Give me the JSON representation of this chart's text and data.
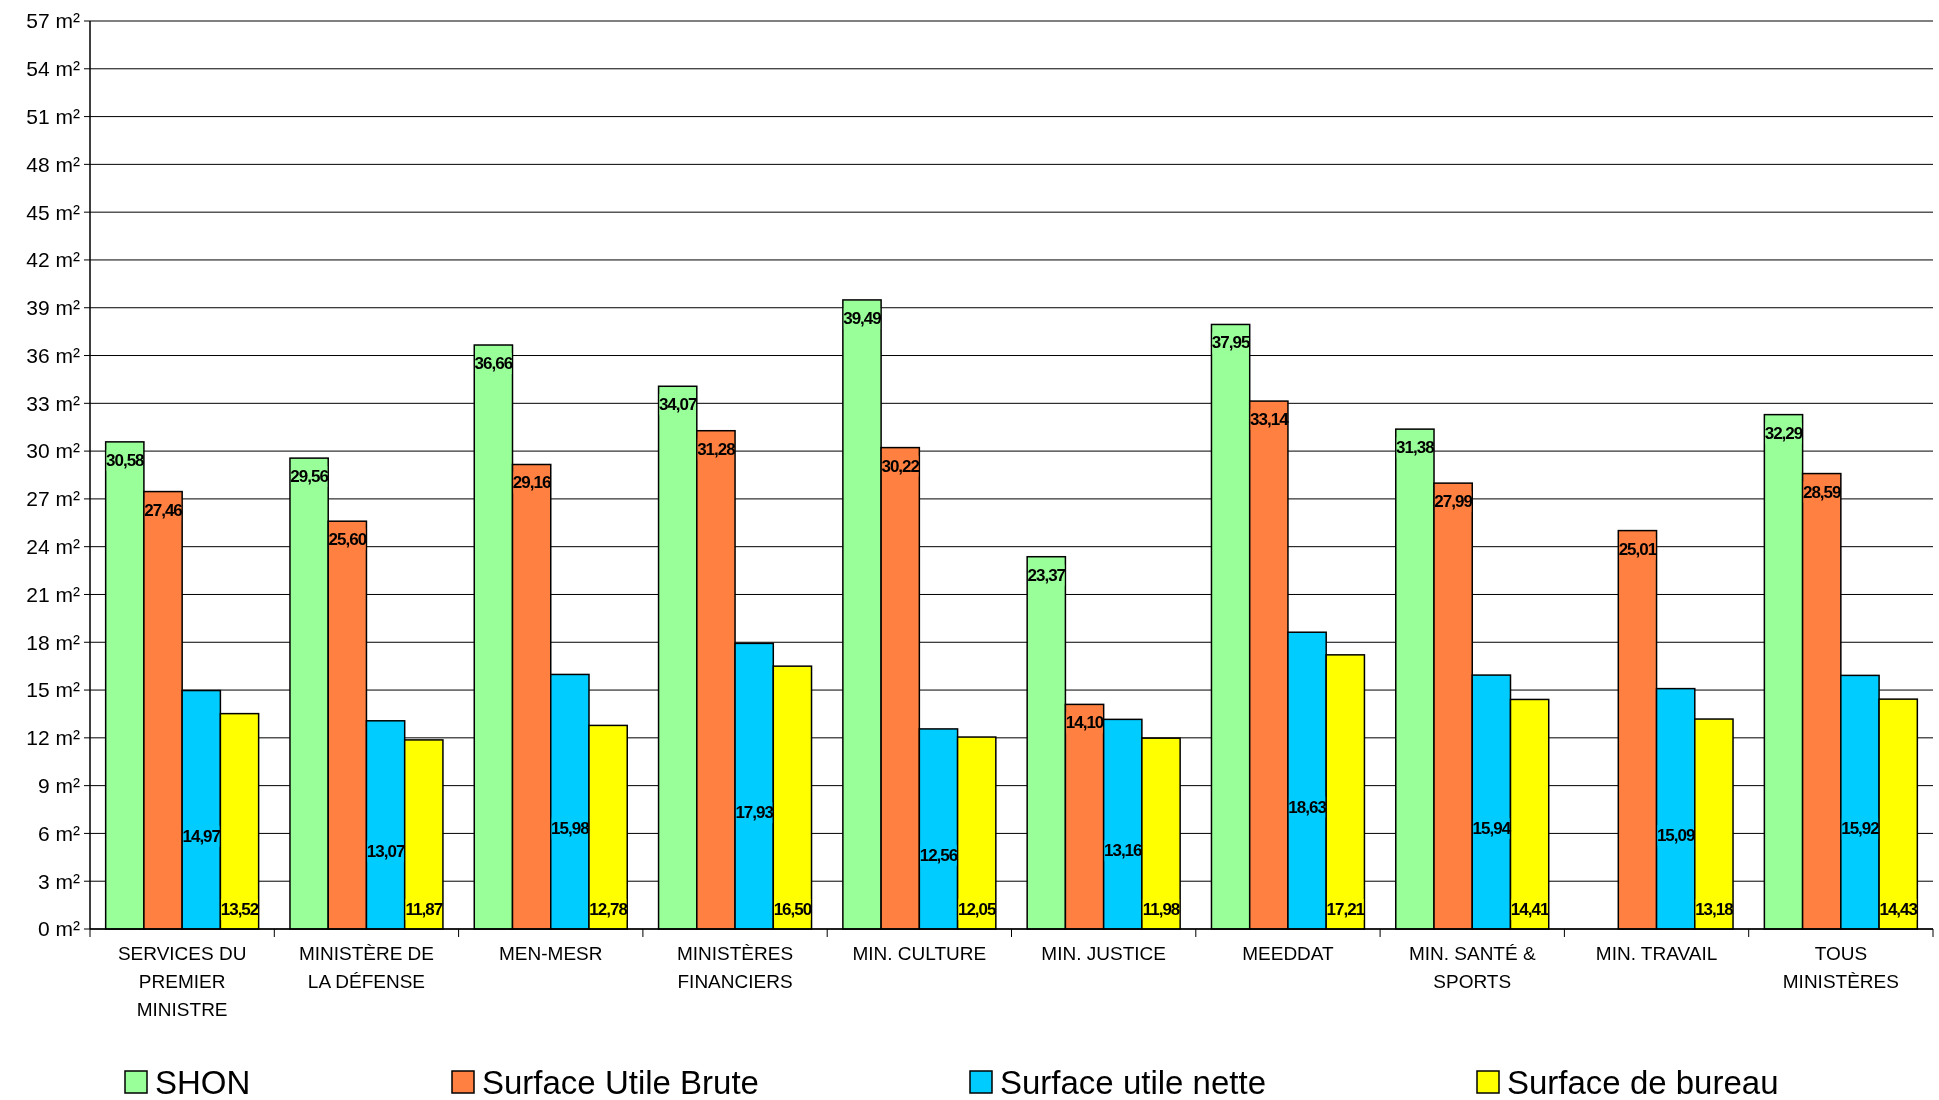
{
  "chart_data": {
    "type": "bar",
    "categories": [
      "SERVICES DU PREMIER MINISTRE",
      "MINISTÈRE DE LA DÉFENSE",
      "MEN-MESR",
      "MINISTÈRES FINANCIERS",
      "MIN. CULTURE",
      "MIN. JUSTICE",
      "MEEDDAT",
      "MIN. SANTÉ & SPORTS",
      "MIN. TRAVAIL",
      "TOUS MINISTÈRES"
    ],
    "series": [
      {
        "name": "SHON",
        "color": "#99ff99",
        "values": [
          30.58,
          29.56,
          36.66,
          34.07,
          39.49,
          23.37,
          37.95,
          31.38,
          null,
          32.29
        ],
        "value_labels": [
          "30,58",
          "29,56",
          "36,66",
          "34,07",
          "39,49",
          "23,37",
          "37,95",
          "31,38",
          null,
          "32,29"
        ]
      },
      {
        "name": "Surface Utile Brute",
        "color": "#ff8040",
        "values": [
          27.46,
          25.6,
          29.16,
          31.28,
          30.22,
          14.1,
          33.14,
          27.99,
          25.01,
          28.59
        ],
        "value_labels": [
          "27,46",
          "25,60",
          "29,16",
          "31,28",
          "30,22",
          "14,10",
          "33,14",
          "27,99",
          "25,01",
          "28,59"
        ]
      },
      {
        "name": "Surface utile nette",
        "color": "#00ccff",
        "values": [
          14.97,
          13.07,
          15.98,
          17.93,
          12.56,
          13.16,
          18.63,
          15.94,
          15.09,
          15.92
        ],
        "value_labels": [
          "14,97",
          "13,07",
          "15,98",
          "17,93",
          "12,56",
          "13,16",
          "18,63",
          "15,94",
          "15,09",
          "15,92"
        ]
      },
      {
        "name": "Surface de bureau",
        "color": "#ffff00",
        "values": [
          13.52,
          11.87,
          12.78,
          16.5,
          12.05,
          11.98,
          17.21,
          14.41,
          13.18,
          14.43
        ],
        "value_labels": [
          "13,52",
          "11,87",
          "12,78",
          "16,50",
          "12,05",
          "11,98",
          "17,21",
          "14,41",
          "13,18",
          "14,43"
        ]
      }
    ],
    "ylim": [
      0,
      57
    ],
    "yticks": [
      {
        "value": 0,
        "label": "0 m²"
      },
      {
        "value": 3,
        "label": "3 m²"
      },
      {
        "value": 6,
        "label": "6 m²"
      },
      {
        "value": 9,
        "label": "9 m²"
      },
      {
        "value": 12,
        "label": "12 m²"
      },
      {
        "value": 15,
        "label": "15 m²"
      },
      {
        "value": 18,
        "label": "18 m²"
      },
      {
        "value": 21,
        "label": "21 m²"
      },
      {
        "value": 24,
        "label": "24 m²"
      },
      {
        "value": 27,
        "label": "27 m²"
      },
      {
        "value": 30,
        "label": "30 m²"
      },
      {
        "value": 33,
        "label": "33 m²"
      },
      {
        "value": 36,
        "label": "36 m²"
      },
      {
        "value": 39,
        "label": "39 m²"
      },
      {
        "value": 42,
        "label": "42 m²"
      },
      {
        "value": 45,
        "label": "45 m²"
      },
      {
        "value": 48,
        "label": "48 m²"
      },
      {
        "value": 51,
        "label": "51 m²"
      },
      {
        "value": 54,
        "label": "54 m²"
      },
      {
        "value": 57,
        "label": "57 m²"
      }
    ],
    "grid": "y",
    "legend": "bottom"
  }
}
